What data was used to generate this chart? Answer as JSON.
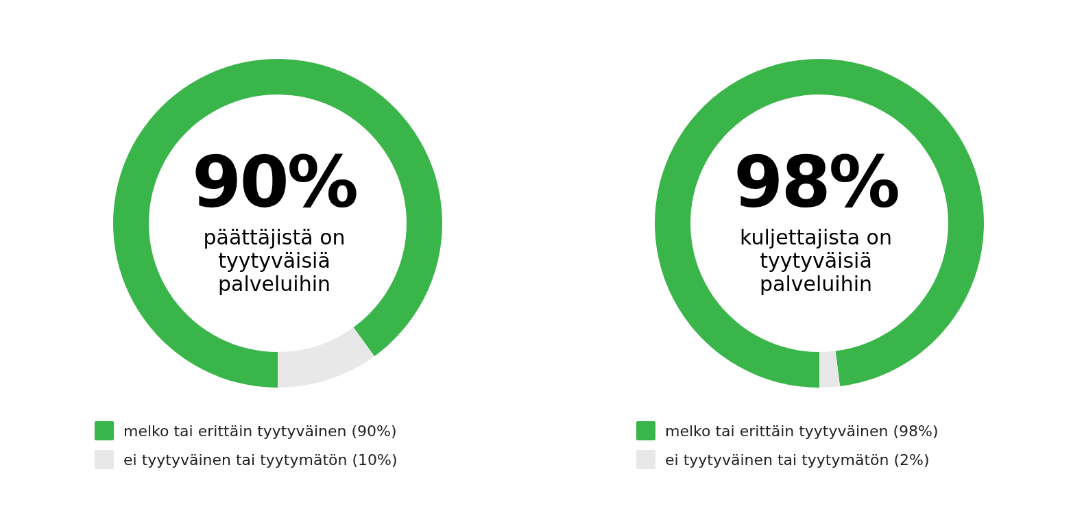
{
  "chart_data": [
    {
      "type": "donut",
      "categories": [
        "melko tai erittäin tyytyväinen (90%)",
        "ei tyytyväinen tai tyytymätön (10%)"
      ],
      "values": [
        90,
        10
      ],
      "colors": [
        "#3ab54a",
        "#e8e8e8"
      ],
      "value_labels": [
        "90%",
        null
      ],
      "annotations": [
        "päättäjistä on tyytyväisiä palveluihin"
      ],
      "legend": "bottom"
    },
    {
      "type": "donut",
      "categories": [
        "melko tai erittäin tyytyväinen (98%)",
        "ei tyytyväinen tai tyytymätön (2%)"
      ],
      "values": [
        98,
        2
      ],
      "colors": [
        "#3ab54a",
        "#e8e8e8"
      ],
      "value_labels": [
        "98%",
        null
      ],
      "annotations": [
        "kuljettajista on tyytyväisiä palveluihin"
      ],
      "legend": "bottom"
    }
  ]
}
